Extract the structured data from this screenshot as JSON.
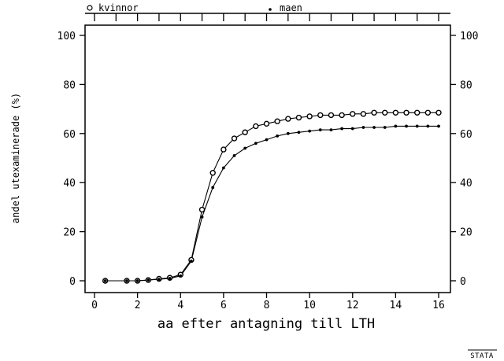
{
  "brand": "STATA",
  "chart_data": {
    "type": "line",
    "title": "",
    "xlabel": "aa efter antagning till LTH",
    "ylabel": "andel utexaminerade (%)",
    "xlim": [
      0,
      16
    ],
    "ylim": [
      0,
      100
    ],
    "xticks": [
      0,
      2,
      4,
      6,
      8,
      10,
      12,
      14,
      16
    ],
    "yticks": [
      0,
      20,
      40,
      60,
      80,
      100
    ],
    "grid": false,
    "legend_position": "top",
    "x": [
      0.5,
      1.5,
      2.0,
      2.5,
      3.0,
      3.5,
      4.0,
      4.5,
      5.0,
      5.5,
      6.0,
      6.5,
      7.0,
      7.5,
      8.0,
      8.5,
      9.0,
      9.5,
      10.0,
      10.5,
      11.0,
      11.5,
      12.0,
      12.5,
      13.0,
      13.5,
      14.0,
      14.5,
      15.0,
      15.5,
      16.0
    ],
    "series": [
      {
        "name": "kvinnor",
        "marker": "hollow-circle",
        "values": [
          0,
          0,
          0,
          0.3,
          0.8,
          1.2,
          2.5,
          8.5,
          29,
          44,
          53.5,
          58,
          60.5,
          63,
          64,
          65,
          66,
          66.5,
          67,
          67.5,
          67.5,
          67.5,
          68,
          68,
          68.5,
          68.5,
          68.5,
          68.5,
          68.5,
          68.5,
          68.5
        ]
      },
      {
        "name": "maen",
        "marker": "dot",
        "values": [
          0,
          0,
          0,
          0.3,
          0.6,
          1.0,
          2.0,
          8.0,
          26,
          38,
          46,
          51,
          54,
          56,
          57.5,
          59,
          60,
          60.5,
          61,
          61.5,
          61.5,
          62,
          62,
          62.5,
          62.5,
          62.5,
          63,
          63,
          63,
          63,
          63
        ]
      }
    ]
  }
}
